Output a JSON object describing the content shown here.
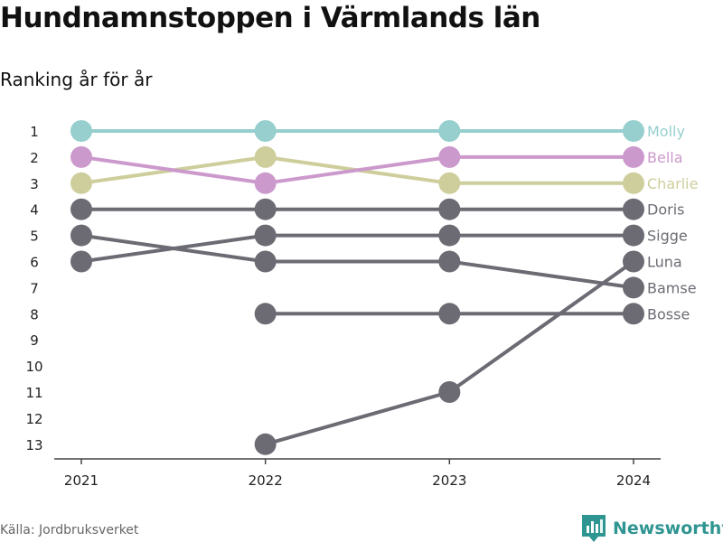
{
  "title": "Hundnamnstoppen i Värmlands län",
  "subtitle": "Ranking år för år",
  "source": "Källa: Jordbruksverket",
  "brand": {
    "name": "Newsworthy",
    "icon": "bar-chart-logo-icon",
    "color": "#2f9591"
  },
  "chart_data": {
    "type": "line",
    "chart_kind": "bump",
    "x": [
      "2021",
      "2022",
      "2023",
      "2024"
    ],
    "y_ticks": [
      1,
      2,
      3,
      4,
      5,
      6,
      7,
      8,
      9,
      10,
      11,
      12,
      13
    ],
    "ylim": [
      13,
      1
    ],
    "y_reversed": true,
    "grid": false,
    "series": [
      {
        "name": "Molly",
        "values": [
          1,
          1,
          1,
          1
        ],
        "color": "#96cfce"
      },
      {
        "name": "Bella",
        "values": [
          2,
          3,
          2,
          2
        ],
        "color": "#cc99cc"
      },
      {
        "name": "Charlie",
        "values": [
          3,
          2,
          3,
          3
        ],
        "color": "#cece9c"
      },
      {
        "name": "Doris",
        "values": [
          4,
          4,
          4,
          4
        ],
        "color": "#6c6b73"
      },
      {
        "name": "Sigge",
        "values": [
          6,
          5,
          5,
          5
        ],
        "color": "#6c6b73"
      },
      {
        "name": "Luna",
        "values": [
          null,
          13,
          11,
          6
        ],
        "color": "#6c6b73"
      },
      {
        "name": "Bamse",
        "values": [
          5,
          6,
          6,
          7
        ],
        "color": "#6c6b73"
      },
      {
        "name": "Bosse",
        "values": [
          null,
          8,
          8,
          8
        ],
        "color": "#6c6b73"
      }
    ]
  }
}
